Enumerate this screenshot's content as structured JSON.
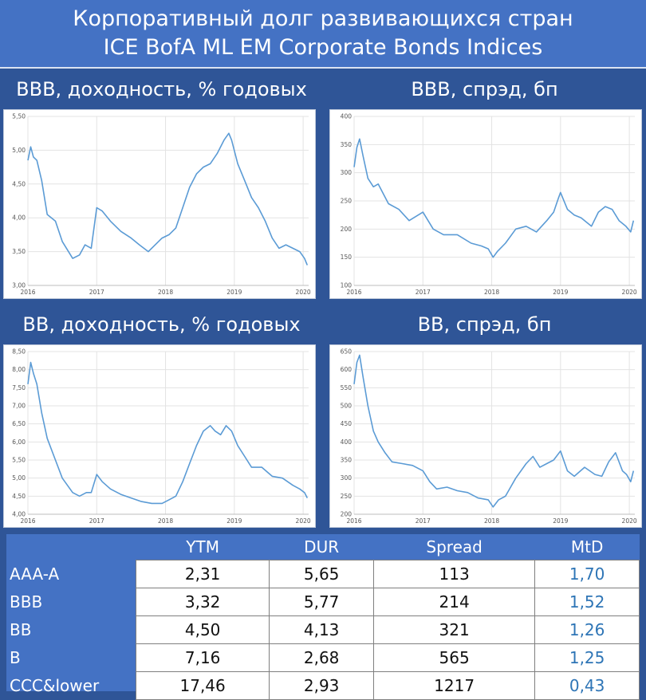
{
  "header": {
    "title_line1": "Корпоративный долг развивающихся стран",
    "title_line2": "ICE BofA ML EM Corporate Bonds Indices"
  },
  "colors": {
    "background": "#2f5597",
    "header": "#4472c4",
    "line": "#5b9bd5",
    "mtd": "#2e75b6"
  },
  "chart_data": [
    {
      "type": "line",
      "title": "BBB, доходность, % годовых",
      "x_ticks": [
        "2016",
        "2017",
        "2018",
        "2019",
        "2020"
      ],
      "y_ticks": [
        "3,00",
        "3,50",
        "4,00",
        "4,50",
        "5,00",
        "5,50"
      ],
      "ylim": [
        3.0,
        5.5
      ],
      "xlim": [
        2016.0,
        2020.08
      ],
      "grid": true,
      "x": [
        2016.0,
        2016.04,
        2016.08,
        2016.13,
        2016.2,
        2016.28,
        2016.4,
        2016.5,
        2016.65,
        2016.75,
        2016.83,
        2016.92,
        2017.0,
        2017.08,
        2017.2,
        2017.35,
        2017.5,
        2017.62,
        2017.75,
        2017.85,
        2017.95,
        2018.05,
        2018.15,
        2018.25,
        2018.35,
        2018.45,
        2018.55,
        2018.65,
        2018.75,
        2018.85,
        2018.92,
        2018.96,
        2019.05,
        2019.15,
        2019.25,
        2019.35,
        2019.45,
        2019.55,
        2019.65,
        2019.75,
        2019.85,
        2019.95,
        2020.02,
        2020.06
      ],
      "y": [
        4.85,
        5.05,
        4.9,
        4.85,
        4.55,
        4.05,
        3.95,
        3.65,
        3.4,
        3.45,
        3.6,
        3.55,
        4.15,
        4.1,
        3.95,
        3.8,
        3.7,
        3.6,
        3.5,
        3.6,
        3.7,
        3.75,
        3.85,
        4.15,
        4.45,
        4.65,
        4.75,
        4.8,
        4.95,
        5.15,
        5.25,
        5.15,
        4.8,
        4.55,
        4.3,
        4.15,
        3.95,
        3.7,
        3.55,
        3.6,
        3.55,
        3.5,
        3.4,
        3.3
      ]
    },
    {
      "type": "line",
      "title": "BBB, спрэд, бп",
      "x_ticks": [
        "2016",
        "2017",
        "2018",
        "2019",
        "2020"
      ],
      "y_ticks": [
        "100",
        "150",
        "200",
        "250",
        "300",
        "350",
        "400"
      ],
      "ylim": [
        100,
        400
      ],
      "xlim": [
        2016.0,
        2020.08
      ],
      "grid": true,
      "x": [
        2016.0,
        2016.04,
        2016.08,
        2016.13,
        2016.2,
        2016.28,
        2016.35,
        2016.5,
        2016.65,
        2016.8,
        2017.0,
        2017.15,
        2017.3,
        2017.5,
        2017.7,
        2017.85,
        2017.95,
        2018.02,
        2018.08,
        2018.2,
        2018.35,
        2018.5,
        2018.65,
        2018.8,
        2018.9,
        2018.97,
        2019.0,
        2019.1,
        2019.2,
        2019.3,
        2019.45,
        2019.55,
        2019.65,
        2019.75,
        2019.85,
        2019.95,
        2020.02,
        2020.06
      ],
      "y": [
        310,
        345,
        360,
        330,
        290,
        275,
        280,
        245,
        235,
        215,
        230,
        200,
        190,
        190,
        175,
        170,
        165,
        150,
        160,
        175,
        200,
        205,
        195,
        215,
        230,
        255,
        265,
        235,
        225,
        220,
        205,
        230,
        240,
        235,
        215,
        205,
        195,
        215
      ]
    },
    {
      "type": "line",
      "title": "BB, доходность, % годовых",
      "x_ticks": [
        "2016",
        "2017",
        "2018",
        "2019",
        "2020"
      ],
      "y_ticks": [
        "4,00",
        "4,50",
        "5,00",
        "5,50",
        "6,00",
        "6,50",
        "7,00",
        "7,50",
        "8,00",
        "8,50"
      ],
      "ylim": [
        4.0,
        8.5
      ],
      "xlim": [
        2016.0,
        2020.08
      ],
      "grid": true,
      "x": [
        2016.0,
        2016.04,
        2016.08,
        2016.13,
        2016.2,
        2016.28,
        2016.4,
        2016.5,
        2016.65,
        2016.75,
        2016.85,
        2016.92,
        2017.0,
        2017.08,
        2017.2,
        2017.35,
        2017.5,
        2017.65,
        2017.8,
        2017.95,
        2018.05,
        2018.15,
        2018.25,
        2018.35,
        2018.45,
        2018.55,
        2018.65,
        2018.72,
        2018.8,
        2018.88,
        2018.96,
        2019.05,
        2019.15,
        2019.25,
        2019.4,
        2019.55,
        2019.7,
        2019.85,
        2019.95,
        2020.02,
        2020.06
      ],
      "y": [
        7.6,
        8.2,
        7.9,
        7.6,
        6.8,
        6.1,
        5.5,
        5.0,
        4.6,
        4.5,
        4.6,
        4.6,
        5.1,
        4.9,
        4.7,
        4.55,
        4.45,
        4.35,
        4.3,
        4.3,
        4.4,
        4.5,
        4.9,
        5.4,
        5.9,
        6.3,
        6.45,
        6.3,
        6.2,
        6.45,
        6.3,
        5.9,
        5.6,
        5.3,
        5.3,
        5.05,
        5.0,
        4.8,
        4.7,
        4.6,
        4.45
      ]
    },
    {
      "type": "line",
      "title": "BB, спрэд, бп",
      "x_ticks": [
        "2016",
        "2017",
        "2018",
        "2019",
        "2020"
      ],
      "y_ticks": [
        "200",
        "250",
        "300",
        "350",
        "400",
        "450",
        "500",
        "550",
        "600",
        "650"
      ],
      "ylim": [
        200,
        650
      ],
      "xlim": [
        2016.0,
        2020.08
      ],
      "grid": true,
      "x": [
        2016.0,
        2016.04,
        2016.08,
        2016.13,
        2016.2,
        2016.28,
        2016.35,
        2016.45,
        2016.55,
        2016.7,
        2016.85,
        2017.0,
        2017.1,
        2017.2,
        2017.35,
        2017.5,
        2017.65,
        2017.8,
        2017.95,
        2018.02,
        2018.1,
        2018.2,
        2018.35,
        2018.5,
        2018.6,
        2018.7,
        2018.8,
        2018.9,
        2019.0,
        2019.1,
        2019.2,
        2019.35,
        2019.5,
        2019.6,
        2019.7,
        2019.8,
        2019.9,
        2019.96,
        2020.02,
        2020.06
      ],
      "y": [
        560,
        620,
        640,
        580,
        500,
        430,
        400,
        370,
        345,
        340,
        335,
        320,
        290,
        270,
        275,
        265,
        260,
        245,
        240,
        220,
        240,
        250,
        300,
        340,
        360,
        330,
        340,
        350,
        375,
        320,
        305,
        330,
        310,
        305,
        345,
        370,
        320,
        310,
        290,
        320
      ]
    }
  ],
  "table": {
    "headers": [
      "",
      "YTM",
      "DUR",
      "Spread",
      "MtD"
    ],
    "rows": [
      {
        "name": "AAA-A",
        "ytm": "2,31",
        "dur": "5,65",
        "spread": "113",
        "mtd": "1,70"
      },
      {
        "name": "BBB",
        "ytm": "3,32",
        "dur": "5,77",
        "spread": "214",
        "mtd": "1,52"
      },
      {
        "name": "BB",
        "ytm": "4,50",
        "dur": "4,13",
        "spread": "321",
        "mtd": "1,26"
      },
      {
        "name": "B",
        "ytm": "7,16",
        "dur": "2,68",
        "spread": "565",
        "mtd": "1,25"
      },
      {
        "name": "CCC&lower",
        "ytm": "17,46",
        "dur": "2,93",
        "spread": "1217",
        "mtd": "0,43"
      }
    ]
  }
}
